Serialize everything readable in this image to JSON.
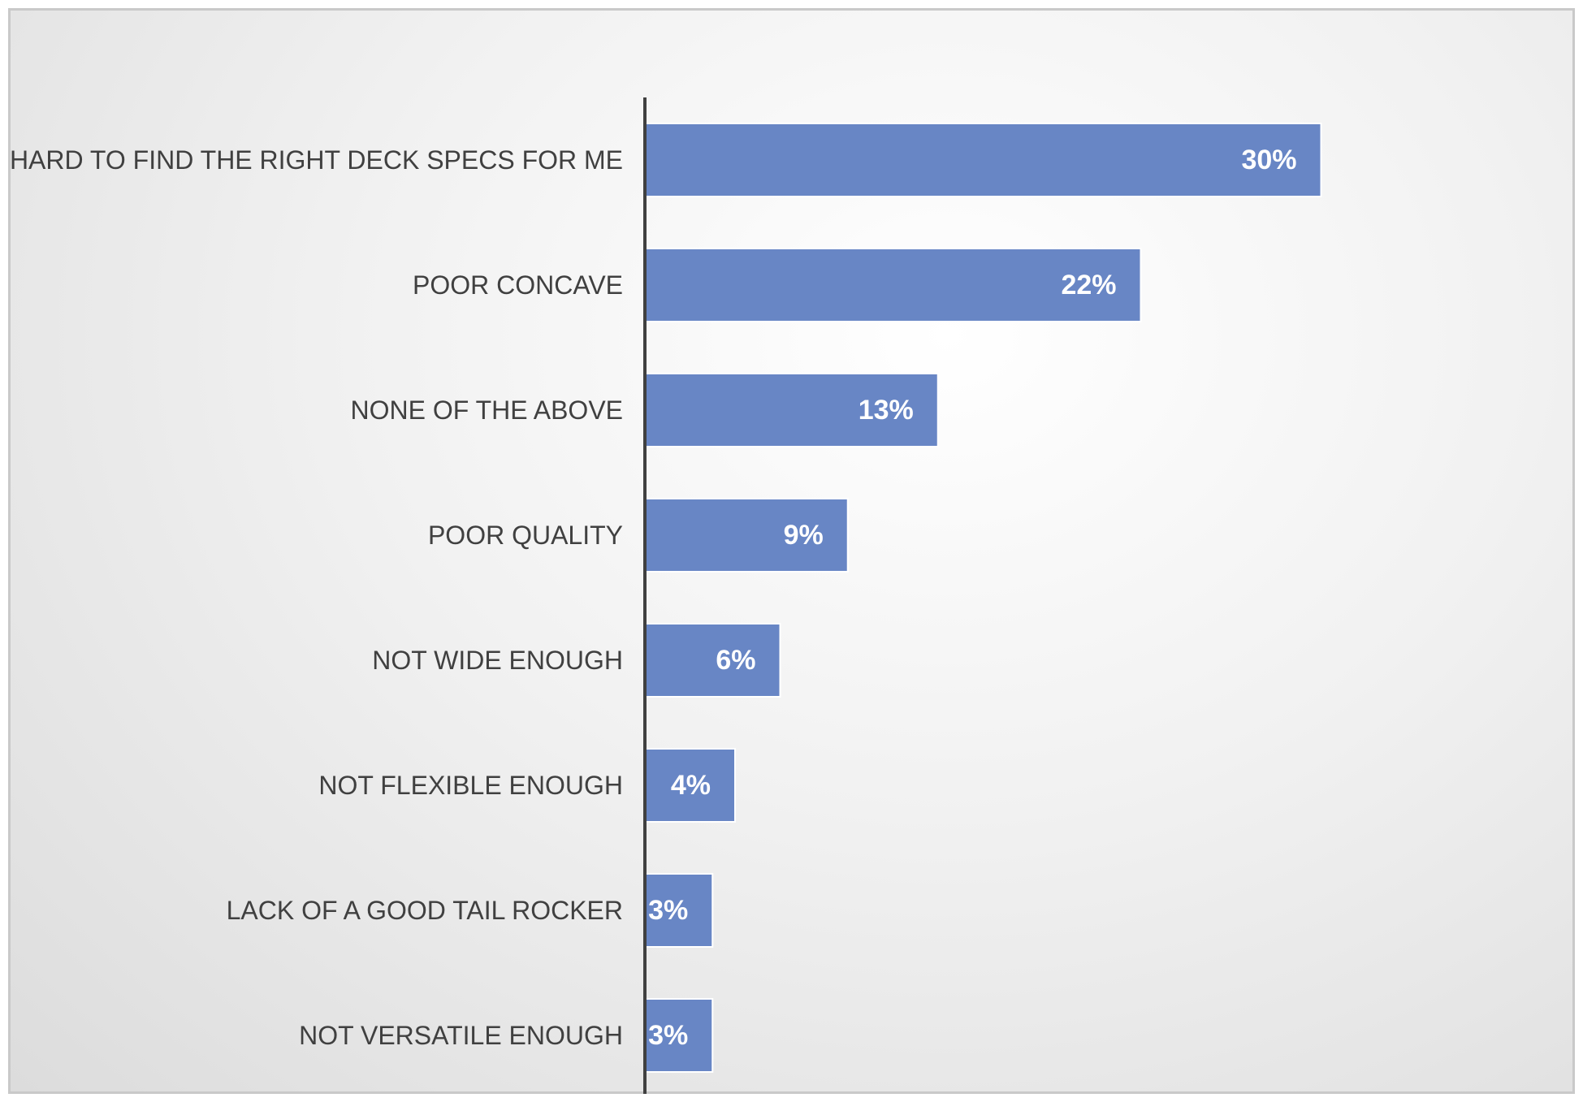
{
  "chart_data": {
    "type": "bar",
    "orientation": "horizontal",
    "categories": [
      "HARD TO FIND THE RIGHT DECK SPECS FOR ME",
      "POOR CONCAVE",
      "NONE OF THE ABOVE",
      "POOR QUALITY",
      "NOT WIDE ENOUGH",
      "NOT FLEXIBLE ENOUGH",
      "LACK OF A GOOD TAIL ROCKER",
      "NOT VERSATILE ENOUGH"
    ],
    "values": [
      30,
      22,
      13,
      9,
      6,
      4,
      3,
      3
    ],
    "value_labels": [
      "30%",
      "22%",
      "13%",
      "9%",
      "6%",
      "4%",
      "3%",
      "3%"
    ],
    "xlim": [
      0,
      36
    ],
    "bar_color": "#6886c5",
    "grid": false,
    "legend": "none"
  }
}
